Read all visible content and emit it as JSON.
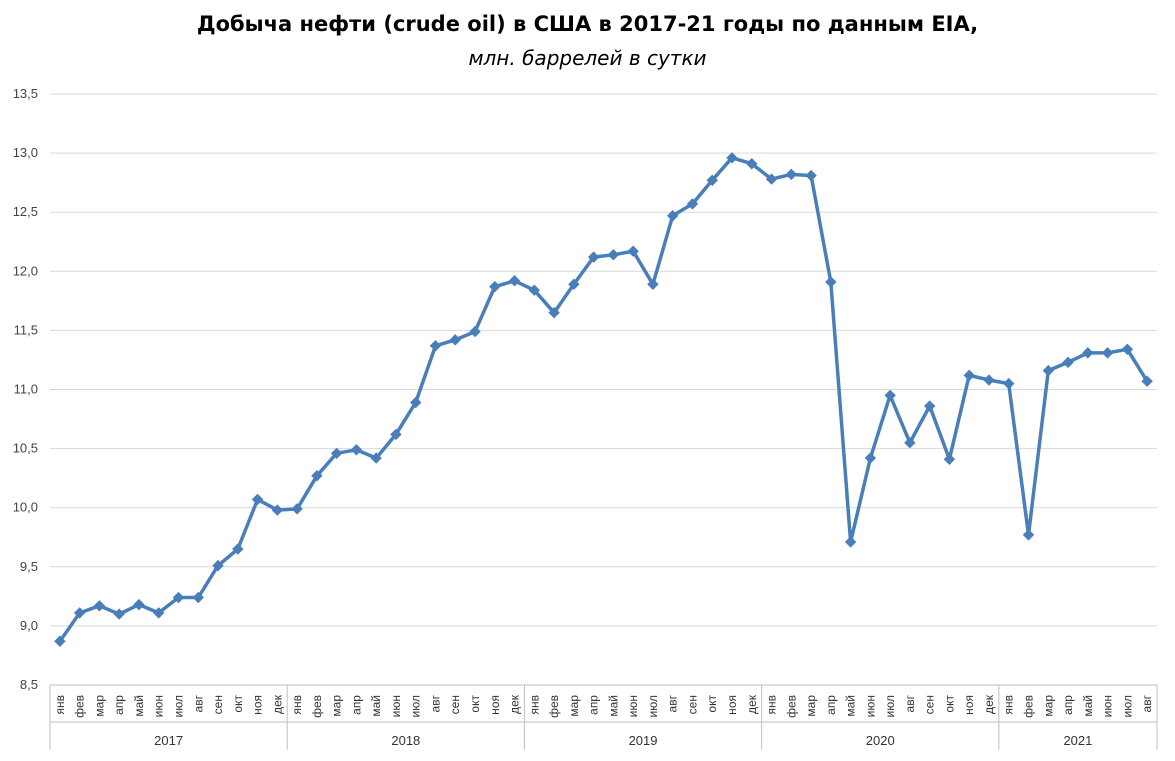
{
  "chart_data": {
    "type": "line",
    "title": "Добыча нефти (crude oil) в США в 2017-21 годы по данным EIA,",
    "subtitle": "млн. баррелей в сутки",
    "ylim": [
      8.5,
      13.5
    ],
    "ytick_step": 0.5,
    "ytick_labels": [
      "8,5",
      "9,0",
      "9,5",
      "10,0",
      "10,5",
      "11,0",
      "11,5",
      "12,0",
      "12,5",
      "13,0",
      "13,5"
    ],
    "grid": true,
    "legend": "none",
    "series_color": "#4a7ebb",
    "years": [
      {
        "label": "2017",
        "months": 12
      },
      {
        "label": "2018",
        "months": 12
      },
      {
        "label": "2019",
        "months": 12
      },
      {
        "label": "2020",
        "months": 12
      },
      {
        "label": "2021",
        "months": 8
      }
    ],
    "month_labels": [
      "янв",
      "фев",
      "мар",
      "апр",
      "май",
      "июн",
      "июл",
      "авг",
      "сен",
      "окт",
      "ноя",
      "дек"
    ],
    "series": [
      {
        "values": [
          8.87,
          9.11,
          9.17,
          9.1,
          9.18,
          9.11,
          9.24,
          9.24,
          9.51,
          9.65,
          10.07,
          9.98,
          9.99,
          10.27,
          10.46,
          10.49,
          10.42,
          10.62,
          10.89,
          11.37,
          11.42,
          11.49,
          11.87,
          11.92,
          11.84,
          11.65,
          11.89,
          12.12,
          12.14,
          12.17,
          11.89,
          12.47,
          12.57,
          12.77,
          12.96,
          12.91,
          12.78,
          12.82,
          12.81,
          11.91,
          9.71,
          10.42,
          10.95,
          10.55,
          10.86,
          10.41,
          11.12,
          11.08,
          11.05,
          9.77,
          11.16,
          11.23,
          11.31,
          11.31,
          11.34,
          11.07
        ]
      }
    ]
  }
}
